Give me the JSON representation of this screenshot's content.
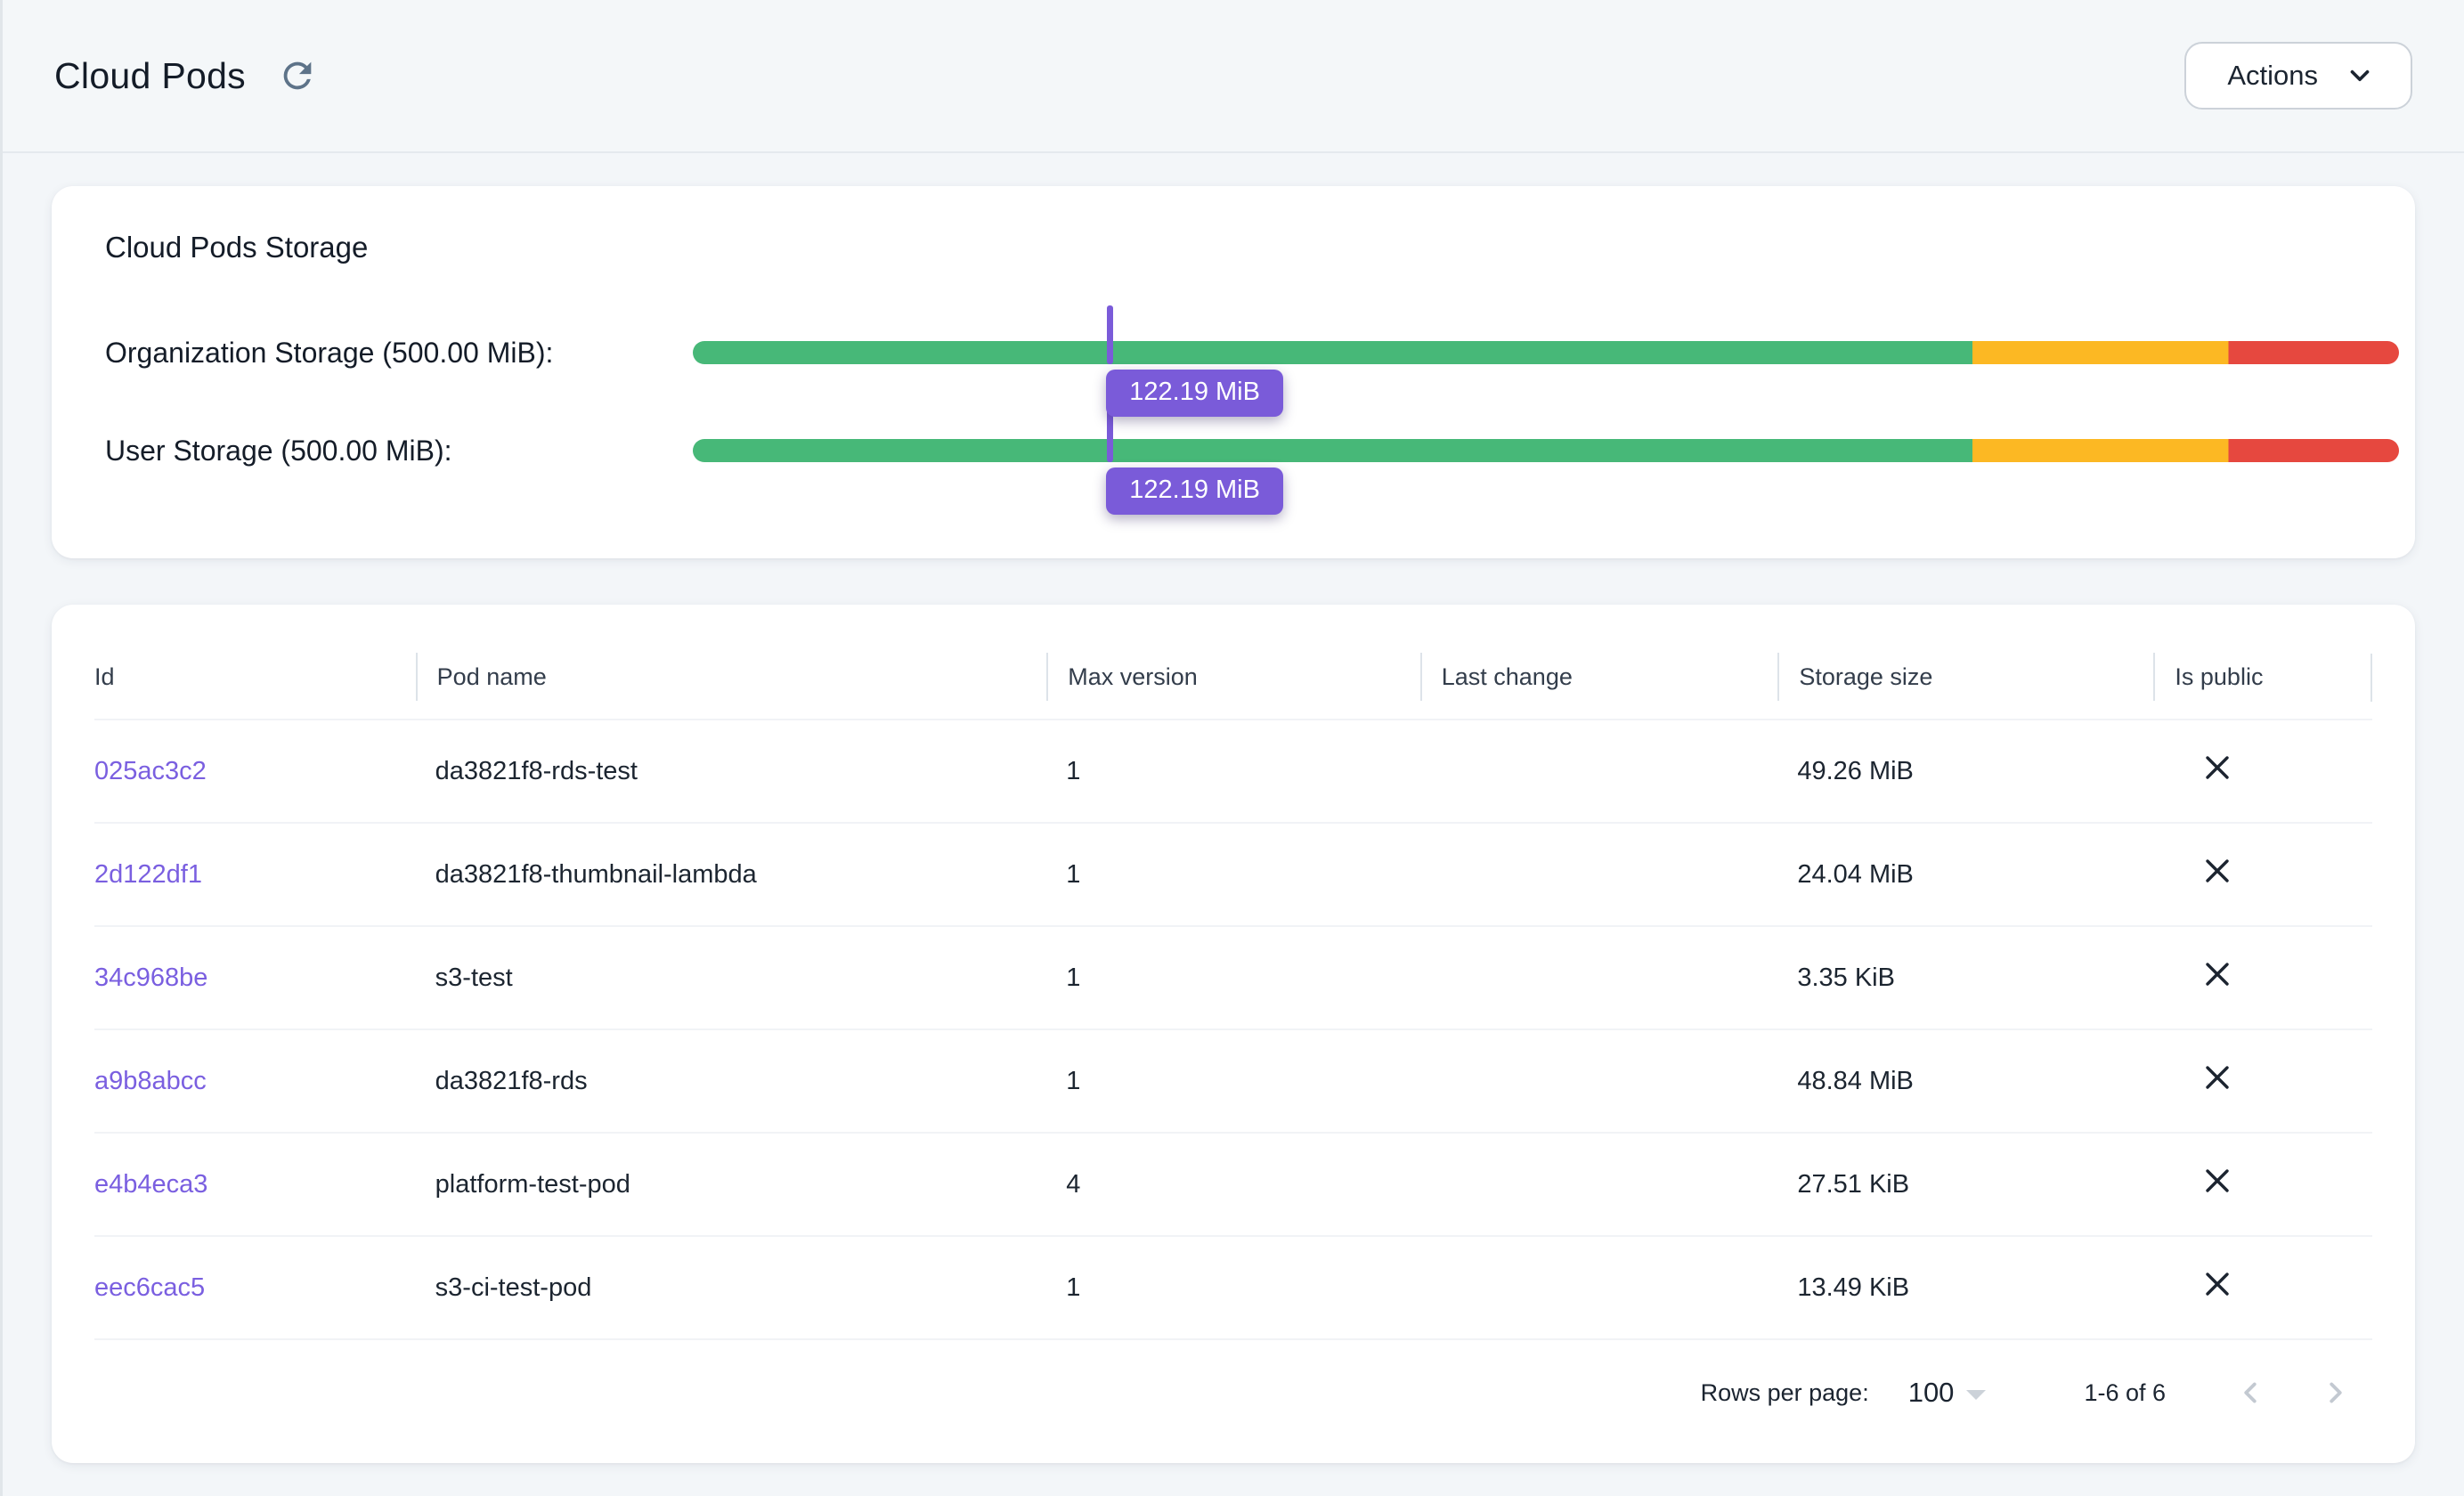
{
  "header": {
    "title": "Cloud Pods",
    "actions_label": "Actions"
  },
  "storage_card": {
    "title": "Cloud Pods Storage",
    "bars": [
      {
        "label": "Organization Storage (500.00 MiB):",
        "value": "122.19 MiB",
        "percent": 24.44
      },
      {
        "label": "User Storage (500.00 MiB):",
        "value": "122.19 MiB",
        "percent": 24.44
      }
    ],
    "thresholds": {
      "green_end_percent": 75,
      "yellow_end_percent": 90
    },
    "colors": {
      "green": "#47b878",
      "yellow": "#fcb823",
      "red": "#e6483f",
      "marker": "#7a5bd9"
    }
  },
  "table": {
    "columns": [
      "Id",
      "Pod name",
      "Max version",
      "Last change",
      "Storage size",
      "Is public"
    ],
    "rows": [
      {
        "id": "025ac3c2",
        "pod_name": "da3821f8-rds-test",
        "max_version": "1",
        "last_change": "",
        "storage_size": "49.26 MiB",
        "is_public": "no"
      },
      {
        "id": "2d122df1",
        "pod_name": "da3821f8-thumbnail-lambda",
        "max_version": "1",
        "last_change": "",
        "storage_size": "24.04 MiB",
        "is_public": "no"
      },
      {
        "id": "34c968be",
        "pod_name": "s3-test",
        "max_version": "1",
        "last_change": "",
        "storage_size": "3.35 KiB",
        "is_public": "no"
      },
      {
        "id": "a9b8abcc",
        "pod_name": "da3821f8-rds",
        "max_version": "1",
        "last_change": "",
        "storage_size": "48.84 MiB",
        "is_public": "no"
      },
      {
        "id": "e4b4eca3",
        "pod_name": "platform-test-pod",
        "max_version": "4",
        "last_change": "",
        "storage_size": "27.51 KiB",
        "is_public": "no"
      },
      {
        "id": "eec6cac5",
        "pod_name": "s3-ci-test-pod",
        "max_version": "1",
        "last_change": "",
        "storage_size": "13.49 KiB",
        "is_public": "no"
      }
    ],
    "footer": {
      "rows_per_page_label": "Rows per page:",
      "rows_per_page_value": "100",
      "range_label": "1-6 of 6"
    }
  }
}
